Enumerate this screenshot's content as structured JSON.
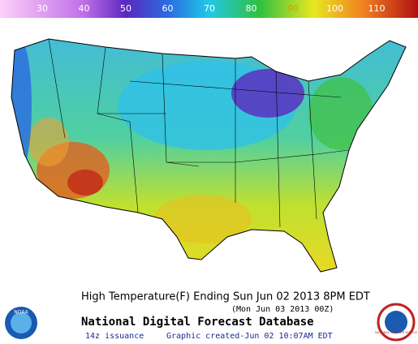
{
  "legend": [
    {
      "label": "30",
      "color": "#f4a8f0"
    },
    {
      "label": "40",
      "color": "#c070e8"
    },
    {
      "label": "50",
      "color": "#6a2cc8"
    },
    {
      "label": "60",
      "color": "#2a6ae0"
    },
    {
      "label": "70",
      "color": "#20c8e8"
    },
    {
      "label": "80",
      "color": "#30c040"
    },
    {
      "label": "90",
      "color": "#e8e820"
    },
    {
      "label": "100",
      "color": "#f08020"
    },
    {
      "label": "110",
      "color": "#c01818"
    }
  ],
  "title": "High Temperature(F) Ending Sun Jun 02 2013  8PM EDT",
  "subtitle": "(Mon Jun 03 2013 00Z)",
  "database": "National Digital Forecast Database",
  "issuance": "14z issuance",
  "created": "Graphic created-Jun 02 10:07AM EDT",
  "logos": {
    "left": "NOAA",
    "right": "NATIONAL WEATHER SERVICE"
  }
}
